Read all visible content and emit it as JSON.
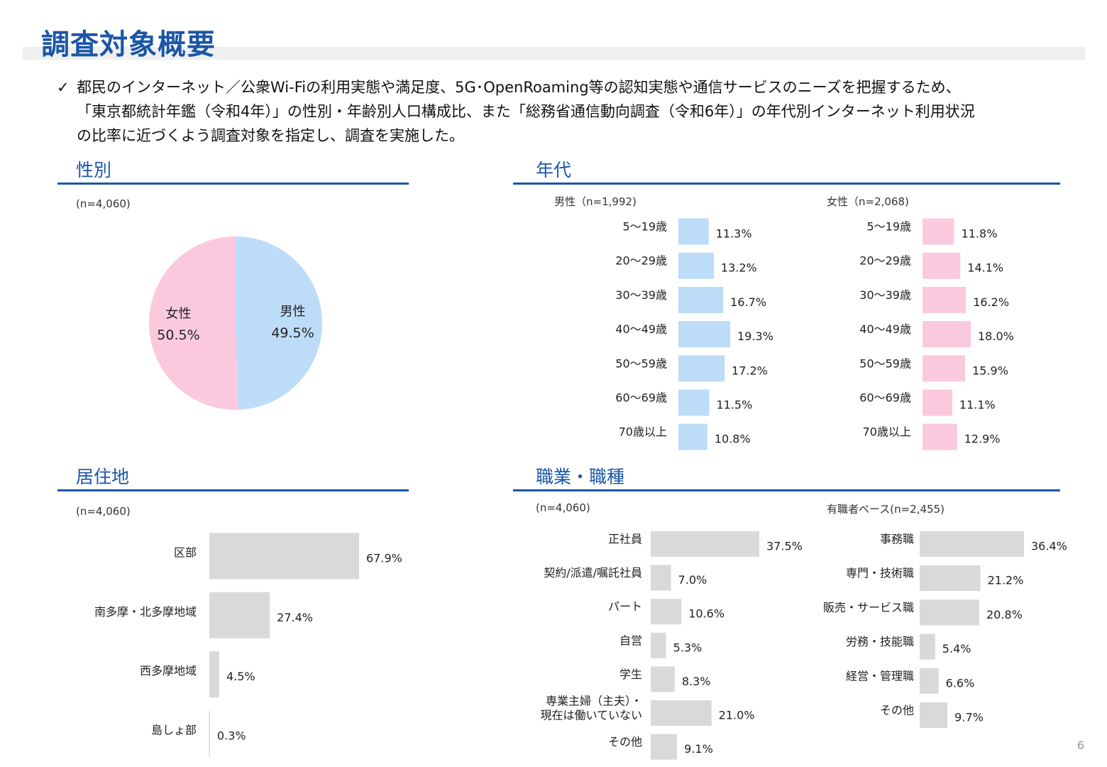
{
  "page": {
    "title": "調査対象概要",
    "check_mark": "✓",
    "intro_lines": [
      "都民のインターネット／公衆Wi-Fiの利用実態や満足度、5G･OpenRoaming等の認知実態や通信サービスのニーズを把握するため、",
      "「東京都統計年鑑（令和4年）」の性別・年齢別人口構成比、また「総務省通信動向調査（令和6年）」の年代別インターネット利用状況",
      "の比率に近づくよう調査対象を指定し、調査を実施した。"
    ],
    "page_number": "6"
  },
  "sections": {
    "gender": {
      "title": "性別",
      "note": "(n=4,060)"
    },
    "age": {
      "title": "年代",
      "male_note": "男性（n=1,992)",
      "female_note": "女性（n=2,068)"
    },
    "residence": {
      "title": "居住地",
      "note": "(n=4,060)"
    },
    "occupation": {
      "title": "職業・職種",
      "note_left": "(n=4,060)",
      "note_right": "有職者ベース(n=2,455)"
    }
  },
  "colors": {
    "male": "#bddcf8",
    "female": "#fbc9de",
    "gray": "#d9d9d9",
    "accent": "#1a56a6"
  },
  "chart_data": [
    {
      "id": "gender",
      "type": "pie",
      "slices": [
        {
          "label": "男性",
          "value": 49.5,
          "value_label": "49.5%",
          "color": "#bddcf8"
        },
        {
          "label": "女性",
          "value": 50.5,
          "value_label": "50.5%",
          "color": "#fbc9de"
        }
      ]
    },
    {
      "id": "age_male",
      "type": "bar",
      "orientation": "horizontal",
      "categories": [
        "5～19歳",
        "20～29歳",
        "30～39歳",
        "40～49歳",
        "50～59歳",
        "60～69歳",
        "70歳以上"
      ],
      "values": [
        11.3,
        13.2,
        16.7,
        19.3,
        17.2,
        11.5,
        10.8
      ],
      "value_labels": [
        "11.3%",
        "13.2%",
        "16.7%",
        "19.3%",
        "17.2%",
        "11.5%",
        "10.8%"
      ],
      "color": "#bddcf8"
    },
    {
      "id": "age_female",
      "type": "bar",
      "orientation": "horizontal",
      "categories": [
        "5～19歳",
        "20～29歳",
        "30～39歳",
        "40～49歳",
        "50～59歳",
        "60～69歳",
        "70歳以上"
      ],
      "values": [
        11.8,
        14.1,
        16.2,
        18.0,
        15.9,
        11.1,
        12.9
      ],
      "value_labels": [
        "11.8%",
        "14.1%",
        "16.2%",
        "18.0%",
        "15.9%",
        "11.1%",
        "12.9%"
      ],
      "color": "#fbc9de"
    },
    {
      "id": "residence",
      "type": "bar",
      "orientation": "horizontal",
      "categories": [
        "区部",
        "南多摩・北多摩地域",
        "西多摩地域",
        "島しょ部"
      ],
      "values": [
        67.9,
        27.4,
        4.5,
        0.3
      ],
      "value_labels": [
        "67.9%",
        "27.4%",
        "4.5%",
        "0.3%"
      ],
      "color": "#d9d9d9"
    },
    {
      "id": "occupation",
      "type": "bar",
      "orientation": "horizontal",
      "categories": [
        [
          "正社員"
        ],
        [
          "契約/派遣/嘱託社員"
        ],
        [
          "パート"
        ],
        [
          "自営"
        ],
        [
          "学生"
        ],
        [
          "専業主婦（主夫）・",
          "現在は働いていない"
        ],
        [
          "その他"
        ]
      ],
      "values": [
        37.5,
        7.0,
        10.6,
        5.3,
        8.3,
        21.0,
        9.1
      ],
      "value_labels": [
        "37.5%",
        "7.0%",
        "10.6%",
        "5.3%",
        "8.3%",
        "21.0%",
        "9.1%"
      ],
      "color": "#d9d9d9"
    },
    {
      "id": "job_type",
      "type": "bar",
      "orientation": "horizontal",
      "categories": [
        [
          "事務職"
        ],
        [
          "専門・技術職"
        ],
        [
          "販売・サービス職"
        ],
        [
          "労務・技能職"
        ],
        [
          "経営・管理職"
        ],
        [
          "その他"
        ]
      ],
      "values": [
        36.4,
        21.2,
        20.8,
        5.4,
        6.6,
        9.7
      ],
      "value_labels": [
        "36.4%",
        "21.2%",
        "20.8%",
        "5.4%",
        "6.6%",
        "9.7%"
      ],
      "color": "#d9d9d9"
    }
  ]
}
